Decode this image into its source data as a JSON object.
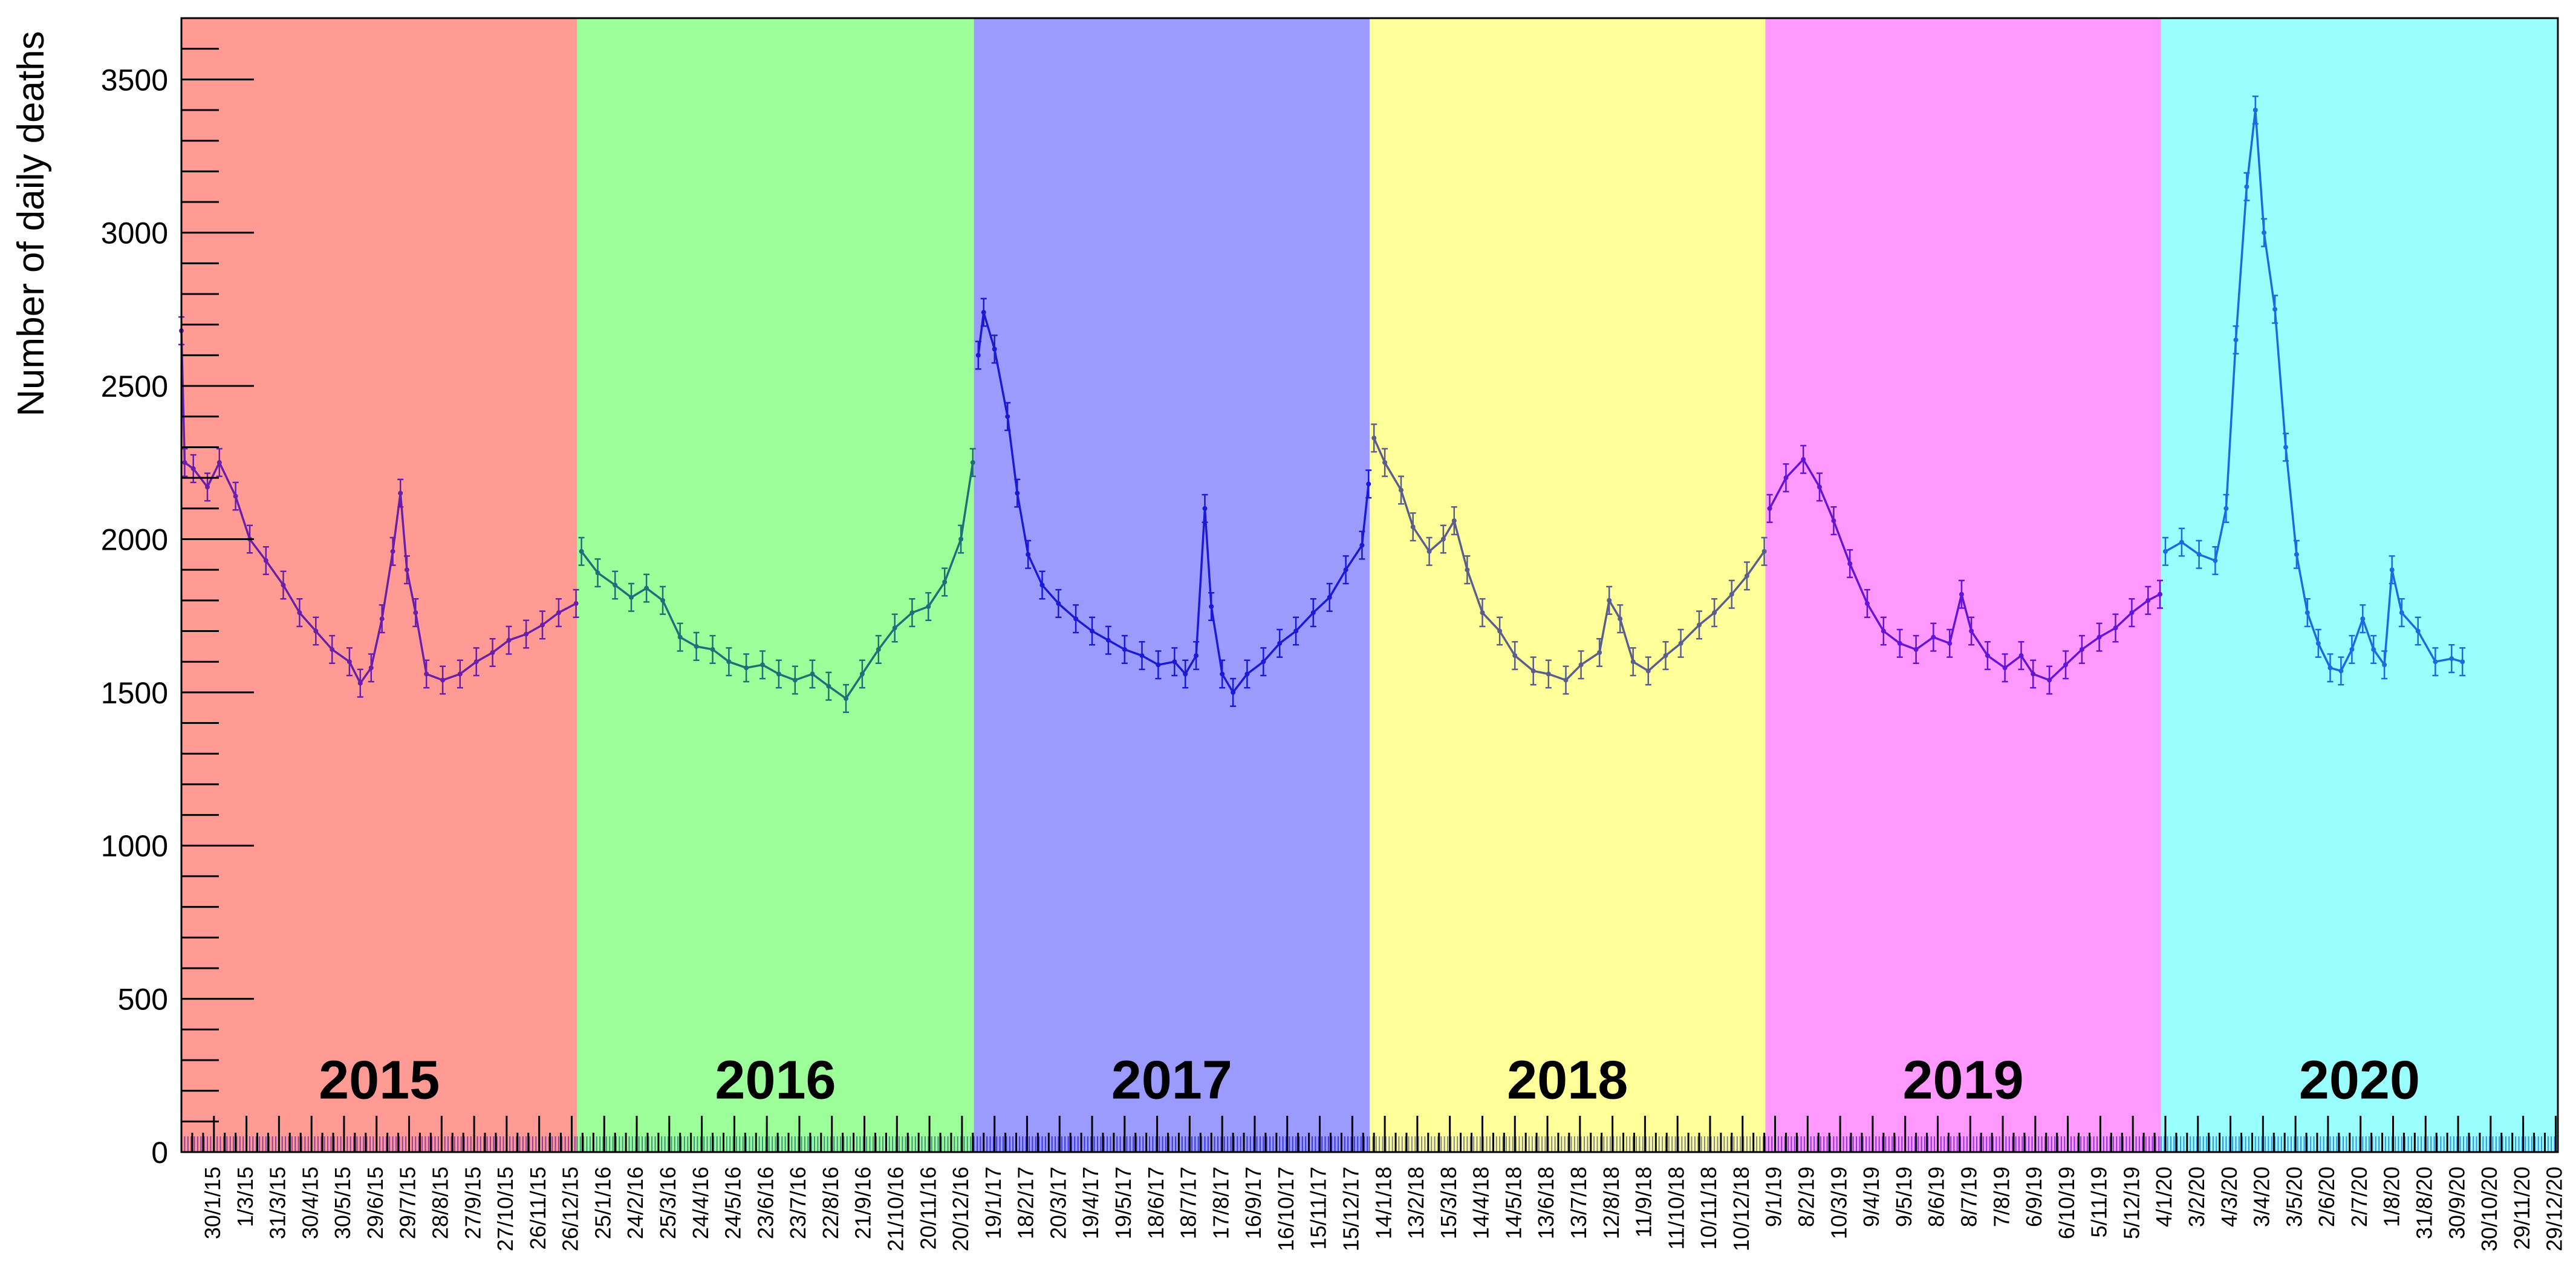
{
  "chart_data": {
    "type": "line",
    "ylabel": "Number of daily deaths",
    "xlabel": "",
    "ylim": [
      0,
      3700
    ],
    "y_ticks": [
      0,
      500,
      1000,
      1500,
      2000,
      2500,
      3000,
      3500
    ],
    "grid": false,
    "x_range": [
      "2015-01-01",
      "2020-12-31"
    ],
    "x_tick_labels": [
      "30/1/15",
      "1/3/15",
      "31/3/15",
      "30/4/15",
      "30/5/15",
      "29/6/15",
      "29/7/15",
      "28/8/15",
      "27/9/15",
      "27/10/15",
      "26/11/15",
      "26/12/15",
      "25/1/16",
      "24/2/16",
      "25/3/16",
      "24/4/16",
      "24/5/16",
      "23/6/16",
      "23/7/16",
      "22/8/16",
      "21/9/16",
      "21/10/16",
      "20/11/16",
      "20/12/16",
      "19/1/17",
      "18/2/17",
      "20/3/17",
      "19/4/17",
      "19/5/17",
      "18/6/17",
      "18/7/17",
      "17/8/17",
      "16/9/17",
      "16/10/17",
      "15/11/17",
      "15/12/17",
      "14/1/18",
      "13/2/18",
      "15/3/18",
      "14/4/18",
      "14/5/18",
      "13/6/18",
      "13/7/18",
      "12/8/18",
      "11/9/18",
      "11/10/18",
      "10/11/18",
      "10/12/18",
      "9/1/19",
      "8/2/19",
      "10/3/19",
      "9/4/19",
      "9/5/19",
      "8/6/19",
      "8/7/19",
      "7/8/19",
      "6/9/19",
      "6/10/19",
      "5/11/19",
      "5/12/19",
      "4/1/20",
      "3/2/20",
      "4/3/20",
      "3/4/20",
      "3/5/20",
      "2/6/20",
      "2/7/20",
      "1/8/20",
      "31/8/20",
      "30/9/20",
      "30/10/20",
      "29/11/20",
      "29/12/20"
    ],
    "years": [
      {
        "label": "2015",
        "start": "2015-01-01",
        "end": "2015-12-31",
        "bg": "#ff9a95",
        "series_color": "#6a1fa8"
      },
      {
        "label": "2016",
        "start": "2016-01-01",
        "end": "2016-12-31",
        "bg": "#9cff99",
        "series_color": "#1f6f78"
      },
      {
        "label": "2017",
        "start": "2017-01-01",
        "end": "2017-12-31",
        "bg": "#9a9aff",
        "series_color": "#1a1ad6"
      },
      {
        "label": "2018",
        "start": "2018-01-01",
        "end": "2018-12-31",
        "bg": "#ffff99",
        "series_color": "#5a5e8c"
      },
      {
        "label": "2019",
        "start": "2019-01-01",
        "end": "2019-12-31",
        "bg": "#ff99ff",
        "series_color": "#6414d8"
      },
      {
        "label": "2020",
        "start": "2020-01-01",
        "end": "2020-12-31",
        "bg": "#99ffff",
        "series_color": "#1a6be0"
      }
    ],
    "series_points": [
      [
        "2015-01-01",
        2680
      ],
      [
        "2015-01-04",
        2250
      ],
      [
        "2015-01-12",
        2230
      ],
      [
        "2015-01-25",
        2170
      ],
      [
        "2015-02-05",
        2250
      ],
      [
        "2015-02-20",
        2140
      ],
      [
        "2015-03-05",
        2000
      ],
      [
        "2015-03-20",
        1930
      ],
      [
        "2015-04-05",
        1850
      ],
      [
        "2015-04-20",
        1760
      ],
      [
        "2015-05-05",
        1700
      ],
      [
        "2015-05-20",
        1640
      ],
      [
        "2015-06-05",
        1600
      ],
      [
        "2015-06-15",
        1530
      ],
      [
        "2015-06-25",
        1580
      ],
      [
        "2015-07-05",
        1740
      ],
      [
        "2015-07-15",
        1960
      ],
      [
        "2015-07-22",
        2150
      ],
      [
        "2015-07-28",
        1900
      ],
      [
        "2015-08-05",
        1760
      ],
      [
        "2015-08-15",
        1560
      ],
      [
        "2015-08-30",
        1540
      ],
      [
        "2015-09-15",
        1560
      ],
      [
        "2015-09-30",
        1600
      ],
      [
        "2015-10-15",
        1630
      ],
      [
        "2015-10-30",
        1670
      ],
      [
        "2015-11-15",
        1690
      ],
      [
        "2015-11-30",
        1720
      ],
      [
        "2015-12-15",
        1760
      ],
      [
        "2015-12-31",
        1790
      ],
      [
        "2016-01-05",
        1960
      ],
      [
        "2016-01-20",
        1890
      ],
      [
        "2016-02-05",
        1850
      ],
      [
        "2016-02-20",
        1810
      ],
      [
        "2016-03-05",
        1840
      ],
      [
        "2016-03-20",
        1800
      ],
      [
        "2016-04-05",
        1680
      ],
      [
        "2016-04-20",
        1650
      ],
      [
        "2016-05-05",
        1640
      ],
      [
        "2016-05-20",
        1600
      ],
      [
        "2016-06-05",
        1580
      ],
      [
        "2016-06-20",
        1590
      ],
      [
        "2016-07-05",
        1560
      ],
      [
        "2016-07-20",
        1540
      ],
      [
        "2016-08-05",
        1560
      ],
      [
        "2016-08-20",
        1520
      ],
      [
        "2016-09-05",
        1480
      ],
      [
        "2016-09-20",
        1560
      ],
      [
        "2016-10-05",
        1640
      ],
      [
        "2016-10-20",
        1710
      ],
      [
        "2016-11-05",
        1760
      ],
      [
        "2016-11-20",
        1780
      ],
      [
        "2016-12-05",
        1860
      ],
      [
        "2016-12-20",
        2000
      ],
      [
        "2016-12-31",
        2250
      ],
      [
        "2017-01-05",
        2600
      ],
      [
        "2017-01-10",
        2740
      ],
      [
        "2017-01-20",
        2620
      ],
      [
        "2017-02-01",
        2400
      ],
      [
        "2017-02-10",
        2150
      ],
      [
        "2017-02-20",
        1950
      ],
      [
        "2017-03-05",
        1850
      ],
      [
        "2017-03-20",
        1790
      ],
      [
        "2017-04-05",
        1740
      ],
      [
        "2017-04-20",
        1700
      ],
      [
        "2017-05-05",
        1670
      ],
      [
        "2017-05-20",
        1640
      ],
      [
        "2017-06-05",
        1620
      ],
      [
        "2017-06-20",
        1590
      ],
      [
        "2017-07-05",
        1600
      ],
      [
        "2017-07-15",
        1560
      ],
      [
        "2017-07-25",
        1620
      ],
      [
        "2017-08-02",
        2100
      ],
      [
        "2017-08-08",
        1780
      ],
      [
        "2017-08-18",
        1560
      ],
      [
        "2017-08-28",
        1500
      ],
      [
        "2017-09-10",
        1560
      ],
      [
        "2017-09-25",
        1600
      ],
      [
        "2017-10-10",
        1660
      ],
      [
        "2017-10-25",
        1700
      ],
      [
        "2017-11-10",
        1760
      ],
      [
        "2017-11-25",
        1810
      ],
      [
        "2017-12-10",
        1900
      ],
      [
        "2017-12-25",
        1980
      ],
      [
        "2017-12-31",
        2180
      ],
      [
        "2018-01-05",
        2330
      ],
      [
        "2018-01-15",
        2250
      ],
      [
        "2018-01-30",
        2160
      ],
      [
        "2018-02-10",
        2040
      ],
      [
        "2018-02-25",
        1960
      ],
      [
        "2018-03-10",
        2000
      ],
      [
        "2018-03-20",
        2060
      ],
      [
        "2018-04-01",
        1900
      ],
      [
        "2018-04-15",
        1760
      ],
      [
        "2018-05-01",
        1700
      ],
      [
        "2018-05-15",
        1620
      ],
      [
        "2018-06-01",
        1570
      ],
      [
        "2018-06-15",
        1560
      ],
      [
        "2018-07-01",
        1540
      ],
      [
        "2018-07-15",
        1590
      ],
      [
        "2018-08-01",
        1630
      ],
      [
        "2018-08-10",
        1800
      ],
      [
        "2018-08-20",
        1740
      ],
      [
        "2018-09-01",
        1600
      ],
      [
        "2018-09-15",
        1570
      ],
      [
        "2018-10-01",
        1620
      ],
      [
        "2018-10-15",
        1660
      ],
      [
        "2018-11-01",
        1720
      ],
      [
        "2018-11-15",
        1760
      ],
      [
        "2018-12-01",
        1820
      ],
      [
        "2018-12-15",
        1880
      ],
      [
        "2018-12-31",
        1960
      ],
      [
        "2019-01-05",
        2100
      ],
      [
        "2019-01-20",
        2200
      ],
      [
        "2019-02-05",
        2260
      ],
      [
        "2019-02-20",
        2170
      ],
      [
        "2019-03-05",
        2060
      ],
      [
        "2019-03-20",
        1920
      ],
      [
        "2019-04-05",
        1790
      ],
      [
        "2019-04-20",
        1700
      ],
      [
        "2019-05-05",
        1660
      ],
      [
        "2019-05-20",
        1640
      ],
      [
        "2019-06-05",
        1680
      ],
      [
        "2019-06-20",
        1660
      ],
      [
        "2019-07-01",
        1820
      ],
      [
        "2019-07-10",
        1700
      ],
      [
        "2019-07-25",
        1620
      ],
      [
        "2019-08-10",
        1580
      ],
      [
        "2019-08-25",
        1620
      ],
      [
        "2019-09-05",
        1560
      ],
      [
        "2019-09-20",
        1540
      ],
      [
        "2019-10-05",
        1590
      ],
      [
        "2019-10-20",
        1640
      ],
      [
        "2019-11-05",
        1680
      ],
      [
        "2019-11-20",
        1710
      ],
      [
        "2019-12-05",
        1760
      ],
      [
        "2019-12-20",
        1800
      ],
      [
        "2019-12-31",
        1820
      ],
      [
        "2020-01-05",
        1960
      ],
      [
        "2020-01-20",
        1990
      ],
      [
        "2020-02-05",
        1950
      ],
      [
        "2020-02-20",
        1930
      ],
      [
        "2020-03-01",
        2100
      ],
      [
        "2020-03-10",
        2650
      ],
      [
        "2020-03-20",
        3150
      ],
      [
        "2020-03-28",
        3400
      ],
      [
        "2020-04-05",
        3000
      ],
      [
        "2020-04-15",
        2750
      ],
      [
        "2020-04-25",
        2300
      ],
      [
        "2020-05-05",
        1950
      ],
      [
        "2020-05-15",
        1760
      ],
      [
        "2020-05-25",
        1660
      ],
      [
        "2020-06-05",
        1580
      ],
      [
        "2020-06-15",
        1570
      ],
      [
        "2020-06-25",
        1640
      ],
      [
        "2020-07-05",
        1740
      ],
      [
        "2020-07-15",
        1640
      ],
      [
        "2020-07-25",
        1590
      ],
      [
        "2020-08-01",
        1900
      ],
      [
        "2020-08-10",
        1760
      ],
      [
        "2020-08-25",
        1700
      ],
      [
        "2020-09-10",
        1600
      ],
      [
        "2020-09-25",
        1610
      ],
      [
        "2020-10-05",
        1600
      ]
    ]
  }
}
